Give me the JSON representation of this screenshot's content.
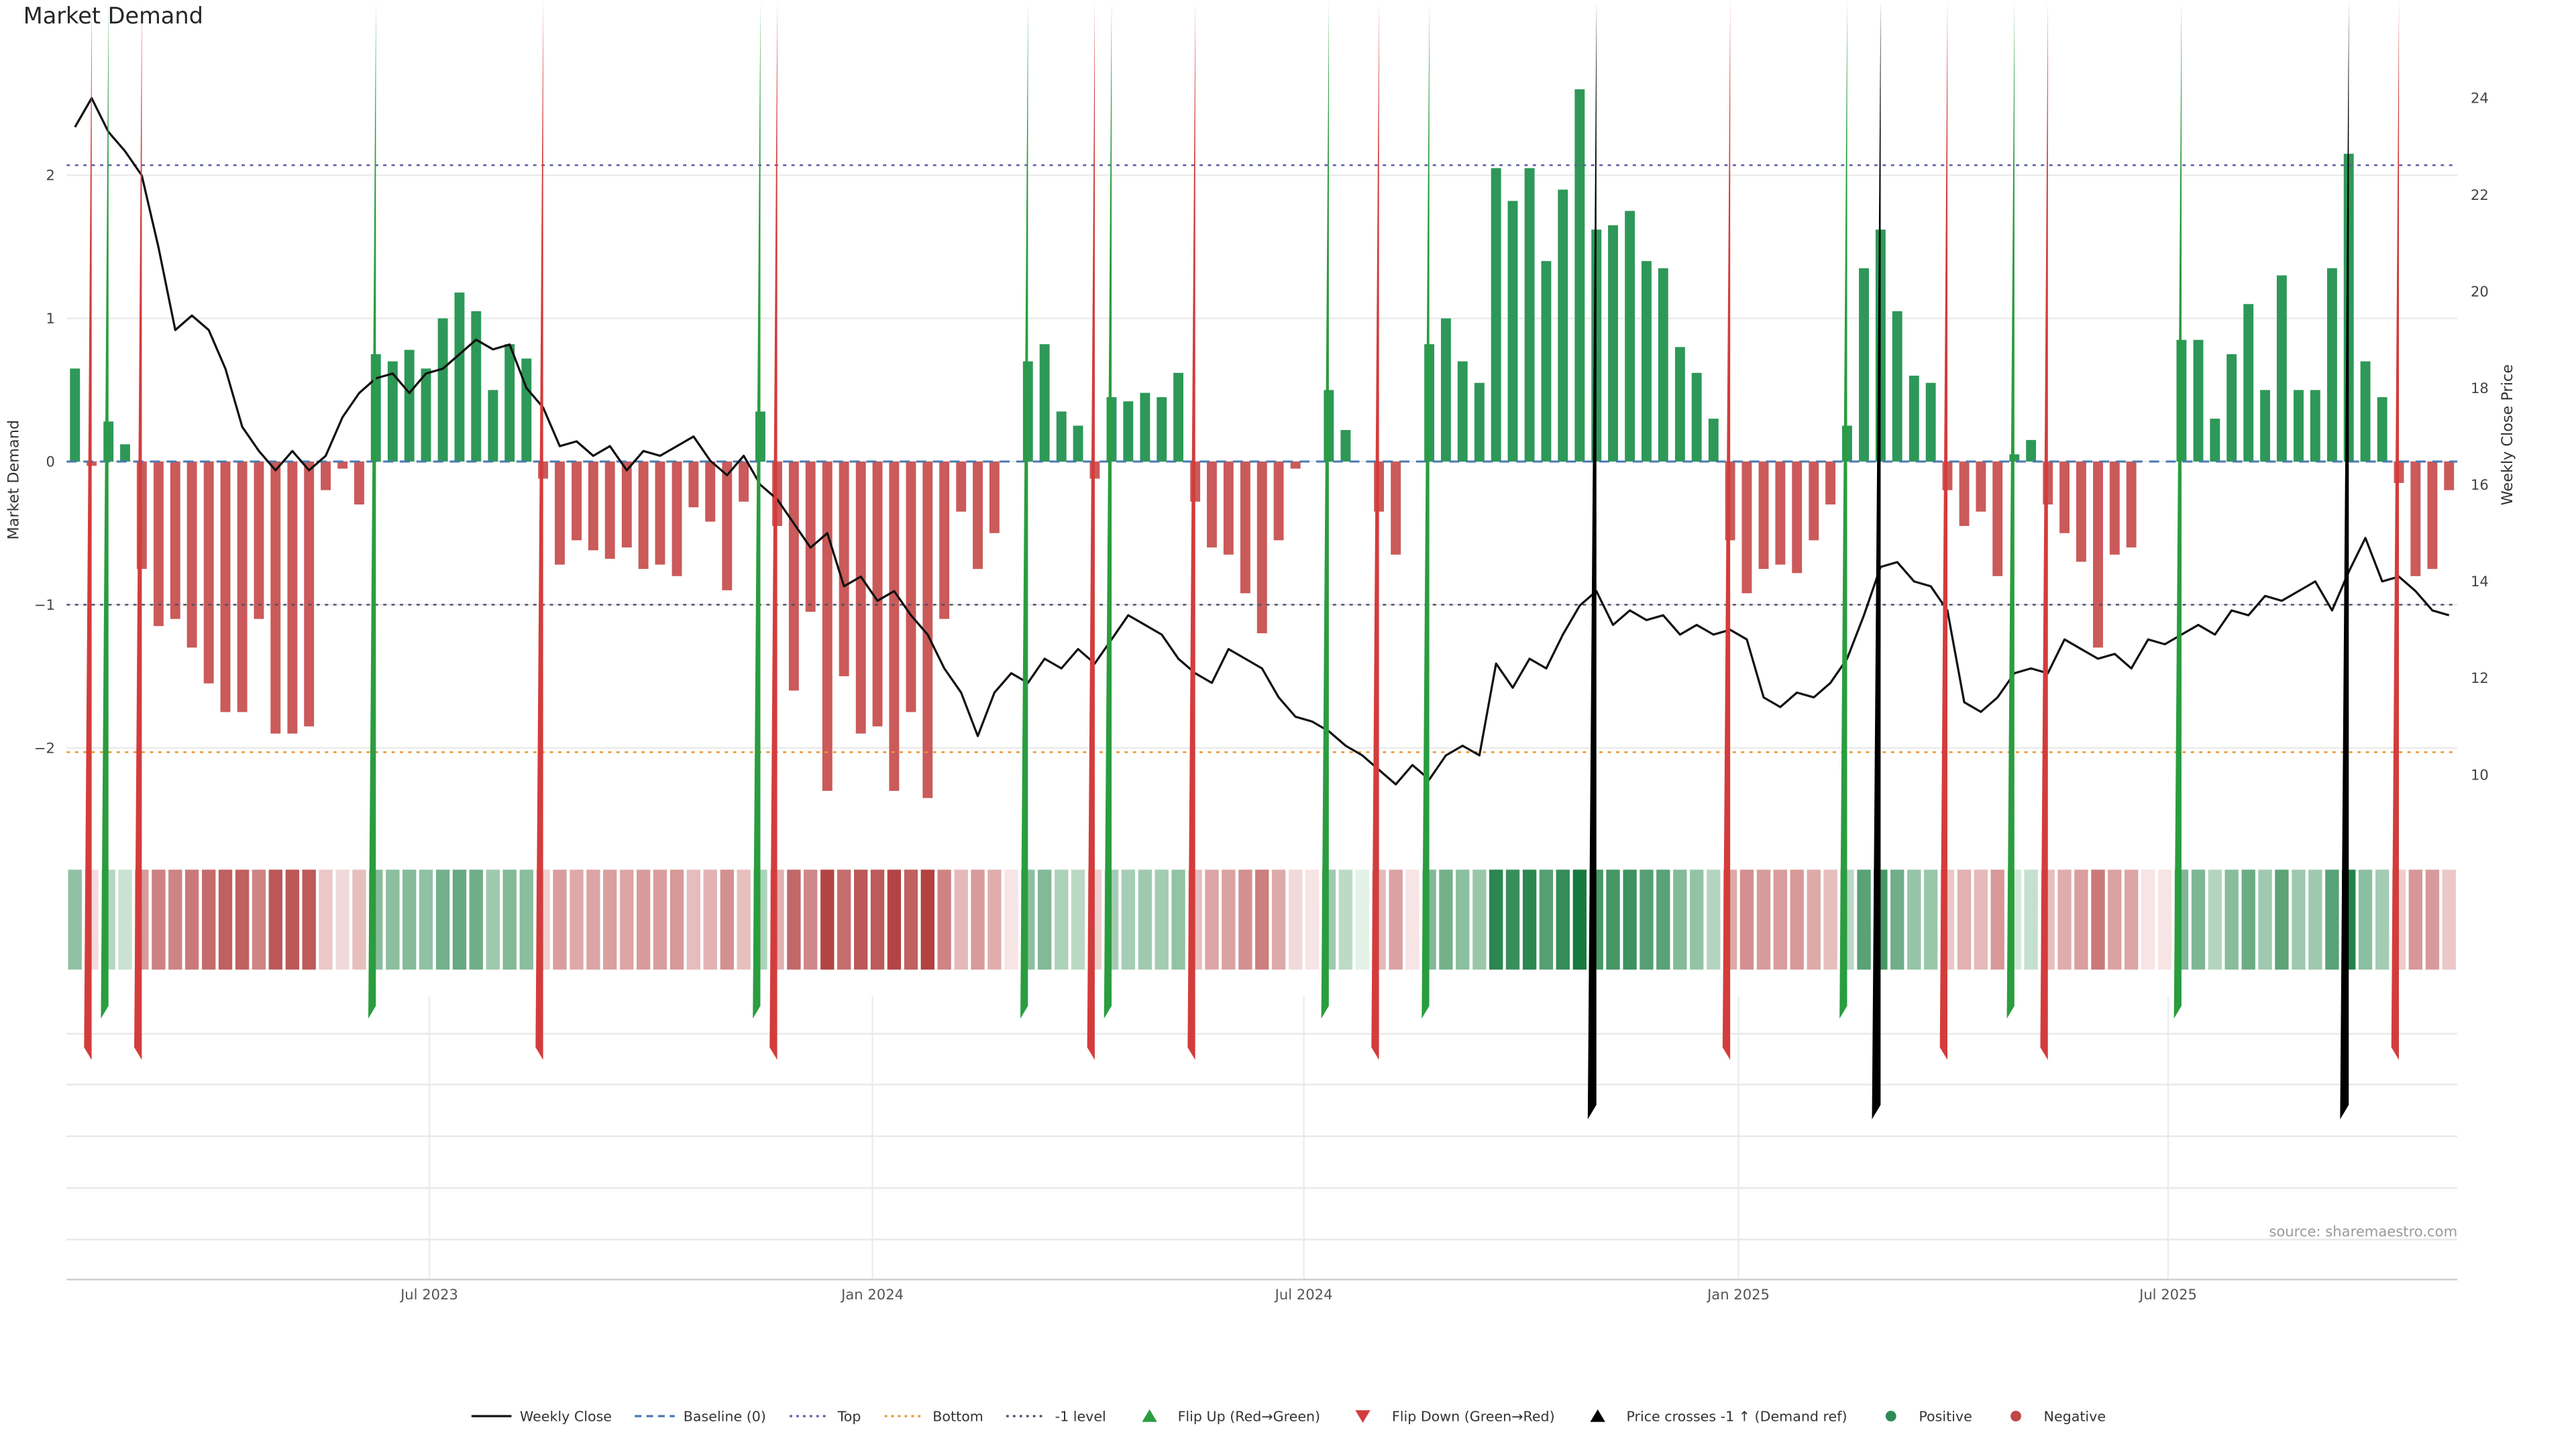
{
  "title": "Market Demand",
  "left_axis_label": "Market Demand",
  "right_axis_label": "Weekly Close Price",
  "source_text": "source: sharemaestro.com",
  "colors": {
    "positive": "#2e9858",
    "negative": "#cb5a5a",
    "price_line": "#111111",
    "baseline": "#4878b0",
    "top": "#5b5ea6",
    "bottom": "#e8962e",
    "minus1": "#4a4e69",
    "flip_up": "#2a9d3f",
    "flip_down": "#d43c3c",
    "cross": "#000000",
    "grid": "#ebebeb",
    "tick_text": "#555555",
    "heat_green_lo": "#e3f1e6",
    "heat_green_hi": "#157a3e",
    "heat_red_lo": "#f7e4e4",
    "heat_red_hi": "#b23f3f"
  },
  "chart_data": {
    "type": "bar+line",
    "x_unit": "week",
    "demand": [
      0.65,
      -0.03,
      0.28,
      0.12,
      -0.75,
      -1.15,
      -1.1,
      -1.3,
      -1.55,
      -1.75,
      -1.75,
      -1.1,
      -1.9,
      -1.9,
      -1.85,
      -0.2,
      -0.05,
      -0.3,
      0.75,
      0.7,
      0.78,
      0.65,
      1.0,
      1.18,
      1.05,
      0.5,
      0.82,
      0.72,
      -0.12,
      -0.72,
      -0.55,
      -0.62,
      -0.68,
      -0.6,
      -0.75,
      -0.72,
      -0.8,
      -0.32,
      -0.42,
      -0.9,
      -0.28,
      0.35,
      -0.45,
      -1.6,
      -1.05,
      -2.3,
      -1.5,
      -1.9,
      -1.85,
      -2.3,
      -1.75,
      -2.35,
      -1.1,
      -0.35,
      -0.75,
      -0.5,
      0.0,
      0.7,
      0.82,
      0.35,
      0.25,
      -0.12,
      0.45,
      0.42,
      0.48,
      0.45,
      0.62,
      -0.28,
      -0.6,
      -0.65,
      -0.92,
      -1.2,
      -0.55,
      -0.05,
      0.0,
      0.5,
      0.22,
      0.0,
      -0.35,
      -0.65,
      0.0,
      0.82,
      1.0,
      0.7,
      0.55,
      2.05,
      1.82,
      2.05,
      1.4,
      1.9,
      2.6,
      1.62,
      1.65,
      1.75,
      1.4,
      1.35,
      0.8,
      0.62,
      0.3,
      -0.55,
      -0.92,
      -0.75,
      -0.72,
      -0.78,
      -0.55,
      -0.3,
      0.25,
      1.35,
      1.62,
      1.05,
      0.6,
      0.55,
      -0.2,
      -0.45,
      -0.35,
      -0.8,
      0.05,
      0.15,
      -0.3,
      -0.5,
      -0.7,
      -1.3,
      -0.65,
      -0.6,
      0.0,
      0.0,
      0.85,
      0.85,
      0.3,
      0.75,
      1.1,
      0.5,
      1.3,
      0.5,
      0.5,
      1.35,
      2.15,
      0.7,
      0.45,
      -0.15,
      -0.8,
      -0.75,
      -0.2
    ],
    "price": [
      23.4,
      24.0,
      23.3,
      22.9,
      22.4,
      20.9,
      19.2,
      19.5,
      19.2,
      18.4,
      17.2,
      16.7,
      16.3,
      16.7,
      16.3,
      16.6,
      17.4,
      17.9,
      18.2,
      18.3,
      17.9,
      18.3,
      18.4,
      18.7,
      19.0,
      18.8,
      18.9,
      18.0,
      17.6,
      16.8,
      16.9,
      16.6,
      16.8,
      16.3,
      16.7,
      16.6,
      16.8,
      17.0,
      16.5,
      16.2,
      16.6,
      16.0,
      15.7,
      15.2,
      14.7,
      15.0,
      13.9,
      14.1,
      13.6,
      13.8,
      13.3,
      12.9,
      12.2,
      11.7,
      10.8,
      11.7,
      12.1,
      11.9,
      12.4,
      12.2,
      12.6,
      12.3,
      12.8,
      13.3,
      13.1,
      12.9,
      12.4,
      12.1,
      11.9,
      12.6,
      12.4,
      12.2,
      11.6,
      11.2,
      11.1,
      10.9,
      10.6,
      10.4,
      10.1,
      9.8,
      10.2,
      9.9,
      10.4,
      10.6,
      10.4,
      12.3,
      11.8,
      12.4,
      12.2,
      12.9,
      13.5,
      13.8,
      13.1,
      13.4,
      13.2,
      13.3,
      12.9,
      13.1,
      12.9,
      13.0,
      12.8,
      11.6,
      11.4,
      11.7,
      11.6,
      11.9,
      12.4,
      13.3,
      14.3,
      14.4,
      14.0,
      13.9,
      13.4,
      11.5,
      11.3,
      11.6,
      12.1,
      12.2,
      12.1,
      12.8,
      12.6,
      12.4,
      12.5,
      12.2,
      12.8,
      12.7,
      12.9,
      13.1,
      12.9,
      13.4,
      13.3,
      13.7,
      13.6,
      13.8,
      14.0,
      13.4,
      14.2,
      14.9,
      14.0,
      14.1,
      13.8,
      13.4,
      13.3
    ],
    "demand_axis": {
      "ticks": [
        -2,
        -1,
        0,
        1,
        2
      ],
      "range": [
        -2.42,
        2.7
      ]
    },
    "price_axis": {
      "ticks": [
        10,
        12,
        14,
        16,
        18,
        20,
        22,
        24
      ],
      "range": [
        9.31,
        24.48
      ]
    },
    "x_ticks": [
      {
        "label": "Jul 2023",
        "week": 21.2
      },
      {
        "label": "Jan 2024",
        "week": 47.7
      },
      {
        "label": "Jul 2024",
        "week": 73.5
      },
      {
        "label": "Jan 2025",
        "week": 99.5
      },
      {
        "label": "Jul 2025",
        "week": 125.2
      }
    ],
    "levels": {
      "baseline": 0,
      "top": 2.07,
      "bottom": -2.03,
      "minus1": -1
    },
    "price_cross_weeks": [
      91,
      108,
      136
    ]
  },
  "legend": {
    "items": [
      {
        "label": "Weekly Close",
        "swatch": {
          "kind": "line",
          "dash": "solid",
          "color": "#111111"
        }
      },
      {
        "label": "Baseline (0)",
        "swatch": {
          "kind": "line",
          "dash": "dashed",
          "color": "#4878b0"
        }
      },
      {
        "label": "Top",
        "swatch": {
          "kind": "line",
          "dash": "dotted",
          "color": "#5b5ea6"
        }
      },
      {
        "label": "Bottom",
        "swatch": {
          "kind": "line",
          "dash": "dotted",
          "color": "#e8962e"
        }
      },
      {
        "label": "-1 level",
        "swatch": {
          "kind": "line",
          "dash": "dotted",
          "color": "#4a4e69"
        }
      },
      {
        "label": "Flip Up (Red→Green)",
        "swatch": {
          "kind": "triangle-up",
          "color": "#2a9d3f"
        }
      },
      {
        "label": "Flip Down (Green→Red)",
        "swatch": {
          "kind": "triangle-down",
          "color": "#d43c3c"
        }
      },
      {
        "label": "Price crosses -1 ↑ (Demand ref)",
        "swatch": {
          "kind": "triangle-up",
          "color": "#000000"
        }
      },
      {
        "label": "Positive",
        "swatch": {
          "kind": "dot",
          "color": "#2e8b57"
        }
      },
      {
        "label": "Negative",
        "swatch": {
          "kind": "dot",
          "color": "#c04848"
        }
      }
    ]
  }
}
